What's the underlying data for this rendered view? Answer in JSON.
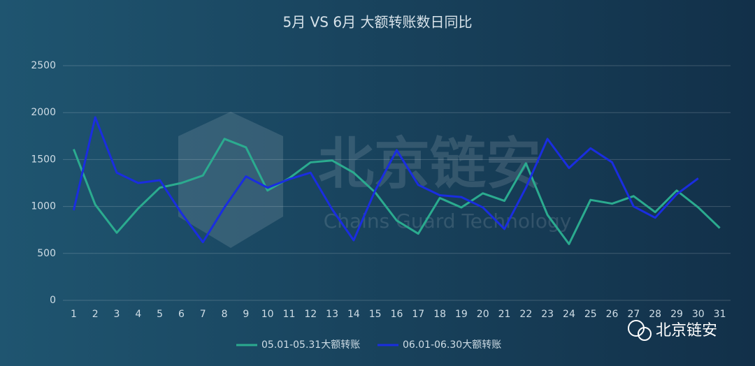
{
  "chart_data": {
    "type": "line",
    "title": "5月 VS 6月 大额转账数日同比",
    "categories": [
      "1",
      "2",
      "3",
      "4",
      "5",
      "6",
      "7",
      "8",
      "9",
      "10",
      "11",
      "12",
      "13",
      "14",
      "15",
      "16",
      "17",
      "18",
      "19",
      "20",
      "21",
      "22",
      "23",
      "24",
      "25",
      "26",
      "27",
      "28",
      "29",
      "30",
      "31"
    ],
    "series": [
      {
        "name": "05.01-05.31大额转账",
        "color": "#2bab8f",
        "values": [
          1610,
          1020,
          720,
          980,
          1200,
          1250,
          1330,
          1720,
          1630,
          1170,
          1300,
          1470,
          1490,
          1360,
          1150,
          850,
          710,
          1090,
          990,
          1140,
          1060,
          1460,
          910,
          600,
          1070,
          1030,
          1110,
          940,
          1170,
          990,
          770
        ]
      },
      {
        "name": "06.01-06.30大额转账",
        "color": "#1a2de0",
        "values": [
          960,
          1950,
          1360,
          1250,
          1280,
          930,
          620,
          990,
          1320,
          1200,
          1290,
          1360,
          970,
          640,
          1170,
          1600,
          1230,
          1120,
          1100,
          990,
          760,
          1200,
          1720,
          1410,
          1620,
          1470,
          1000,
          880,
          1130,
          1300,
          null
        ]
      }
    ],
    "ylim": [
      0,
      2500
    ],
    "yticks": [
      0,
      500,
      1000,
      1500,
      2000,
      2500
    ],
    "grid": true,
    "legend": "bottom",
    "watermark": {
      "title": "北京链安",
      "subtitle": "Chains Guard Technology"
    },
    "brand": "北京链安"
  }
}
